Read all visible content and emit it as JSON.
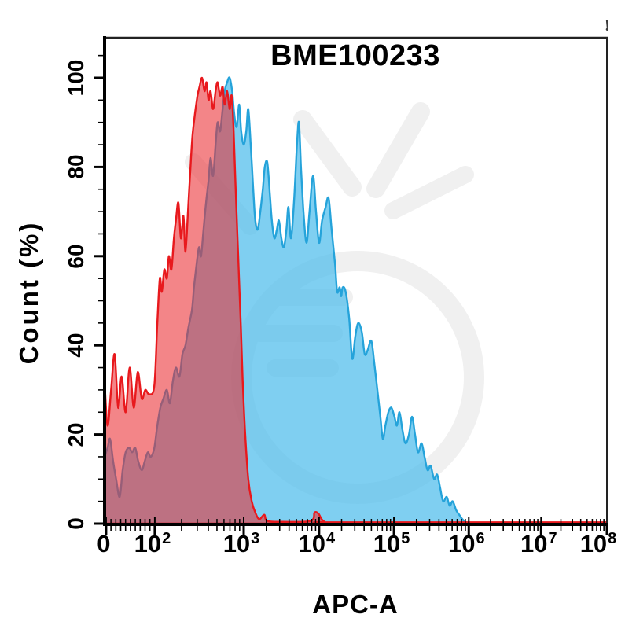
{
  "page": {
    "background": "#ffffff",
    "alert_glyph": "!"
  },
  "chart_data": {
    "type": "area",
    "subtype": "flow-cytometry-histogram-overlay",
    "title": "BME100233",
    "xlabel": "APC-A",
    "ylabel": "Count (%)",
    "grid": false,
    "legend": "none",
    "x_axis": {
      "scale": "biexponential-log",
      "ticks": [
        {
          "base": "0",
          "sup": "",
          "pos": 0.3
        },
        {
          "base": "10",
          "sup": "2",
          "pos": 10.0
        },
        {
          "base": "10",
          "sup": "3",
          "pos": 27.7
        },
        {
          "base": "10",
          "sup": "4",
          "pos": 42.7
        },
        {
          "base": "10",
          "sup": "5",
          "pos": 57.6
        },
        {
          "base": "10",
          "sup": "6",
          "pos": 72.5
        },
        {
          "base": "10",
          "sup": "7",
          "pos": 86.9
        },
        {
          "base": "10",
          "sup": "8",
          "pos": 100
        }
      ]
    },
    "y_axis": {
      "min": 0,
      "max": 100,
      "major_step": 20,
      "minor_step": 5,
      "ticks": [
        0,
        20,
        40,
        60,
        80,
        100
      ]
    },
    "axis_color": "#000000",
    "watermark_color": "#f0f0f0",
    "series": [
      {
        "name": "blue_stained_histogram",
        "stroke": "#25a3da",
        "fill": "rgba(77,189,235,0.72)",
        "points": [
          [
            0,
            15
          ],
          [
            0.6,
            17
          ],
          [
            1.1,
            19
          ],
          [
            1.7,
            14
          ],
          [
            2.3,
            10
          ],
          [
            3.0,
            6
          ],
          [
            3.6,
            12
          ],
          [
            4.2,
            16
          ],
          [
            4.9,
            17
          ],
          [
            5.5,
            16
          ],
          [
            6.1,
            17
          ],
          [
            6.7,
            14
          ],
          [
            7.4,
            12
          ],
          [
            8.0,
            14
          ],
          [
            8.6,
            16
          ],
          [
            9.2,
            15
          ],
          [
            9.9,
            17
          ],
          [
            10.5,
            22
          ],
          [
            11.1,
            26
          ],
          [
            11.7,
            28
          ],
          [
            12.4,
            30
          ],
          [
            13.0,
            27
          ],
          [
            13.6,
            32
          ],
          [
            14.2,
            35
          ],
          [
            14.9,
            33
          ],
          [
            15.5,
            38
          ],
          [
            16.1,
            40
          ],
          [
            16.7,
            44
          ],
          [
            17.4,
            48
          ],
          [
            17.8,
            53
          ],
          [
            18.3,
            58
          ],
          [
            18.8,
            62
          ],
          [
            19.2,
            60
          ],
          [
            19.7,
            66
          ],
          [
            20.2,
            72
          ],
          [
            20.7,
            77
          ],
          [
            21.1,
            82
          ],
          [
            21.6,
            78
          ],
          [
            22.1,
            85
          ],
          [
            22.5,
            90
          ],
          [
            23.0,
            88
          ],
          [
            23.5,
            93
          ],
          [
            23.9,
            97
          ],
          [
            24.4,
            99
          ],
          [
            24.9,
            100
          ],
          [
            25.4,
            97
          ],
          [
            25.8,
            92
          ],
          [
            26.3,
            89
          ],
          [
            26.8,
            94
          ],
          [
            27.2,
            88
          ],
          [
            27.7,
            85
          ],
          [
            28.2,
            88
          ],
          [
            28.6,
            93
          ],
          [
            29.1,
            85
          ],
          [
            29.6,
            75
          ],
          [
            30.0,
            68
          ],
          [
            30.5,
            66
          ],
          [
            31.0,
            70
          ],
          [
            31.5,
            75
          ],
          [
            31.9,
            80
          ],
          [
            32.4,
            81
          ],
          [
            32.9,
            74
          ],
          [
            33.3,
            68
          ],
          [
            33.8,
            64
          ],
          [
            34.3,
            66
          ],
          [
            34.7,
            68
          ],
          [
            35.2,
            64
          ],
          [
            35.7,
            62
          ],
          [
            36.2,
            66
          ],
          [
            36.6,
            71
          ],
          [
            37.1,
            64
          ],
          [
            37.7,
            72
          ],
          [
            38.3,
            85
          ],
          [
            38.7,
            90
          ],
          [
            39.1,
            80
          ],
          [
            39.6,
            70
          ],
          [
            40.2,
            63
          ],
          [
            40.8,
            70
          ],
          [
            41.5,
            78
          ],
          [
            42.1,
            70
          ],
          [
            42.7,
            63
          ],
          [
            43.3,
            68
          ],
          [
            44.0,
            71
          ],
          [
            44.6,
            73
          ],
          [
            45.2,
            66
          ],
          [
            45.9,
            58
          ],
          [
            46.3,
            52
          ],
          [
            46.8,
            53
          ],
          [
            47.1,
            51
          ],
          [
            47.4,
            53
          ],
          [
            48.0,
            52
          ],
          [
            48.7,
            46
          ],
          [
            49.3,
            37
          ],
          [
            49.9,
            42
          ],
          [
            50.5,
            45
          ],
          [
            51.2,
            43
          ],
          [
            51.8,
            38
          ],
          [
            52.4,
            39
          ],
          [
            53.1,
            41
          ],
          [
            53.7,
            36
          ],
          [
            54.3,
            30
          ],
          [
            54.9,
            24
          ],
          [
            55.4,
            19
          ],
          [
            55.9,
            22
          ],
          [
            56.5,
            25
          ],
          [
            57.1,
            26
          ],
          [
            57.7,
            24
          ],
          [
            58.2,
            22
          ],
          [
            58.7,
            25
          ],
          [
            59.3,
            21
          ],
          [
            59.9,
            18
          ],
          [
            60.6,
            20
          ],
          [
            61.2,
            24
          ],
          [
            61.8,
            20
          ],
          [
            62.4,
            16
          ],
          [
            63.1,
            18
          ],
          [
            63.7,
            15
          ],
          [
            64.3,
            12
          ],
          [
            64.9,
            13
          ],
          [
            65.6,
            10
          ],
          [
            66.2,
            11
          ],
          [
            66.8,
            8
          ],
          [
            67.4,
            5
          ],
          [
            68.1,
            6
          ],
          [
            68.7,
            4
          ],
          [
            69.3,
            5
          ],
          [
            70.0,
            3
          ],
          [
            70.6,
            2
          ],
          [
            71.2,
            1
          ],
          [
            71.8,
            0.4
          ],
          [
            72.5,
            0.1
          ]
        ]
      },
      {
        "name": "red_control_histogram",
        "stroke": "#e8191d",
        "fill": "rgba(235,45,50,0.58)",
        "points": [
          [
            0,
            32
          ],
          [
            0.6,
            22
          ],
          [
            1.3,
            30
          ],
          [
            2.0,
            38
          ],
          [
            2.7,
            26
          ],
          [
            3.4,
            33
          ],
          [
            4.2,
            25
          ],
          [
            5.0,
            35
          ],
          [
            5.8,
            26
          ],
          [
            6.6,
            34
          ],
          [
            7.4,
            28
          ],
          [
            8.1,
            30
          ],
          [
            8.9,
            29
          ],
          [
            9.9,
            31
          ],
          [
            10.5,
            45
          ],
          [
            11.0,
            55
          ],
          [
            11.4,
            52
          ],
          [
            11.9,
            57
          ],
          [
            12.4,
            55
          ],
          [
            12.8,
            60
          ],
          [
            13.3,
            57
          ],
          [
            13.8,
            64
          ],
          [
            14.2,
            68
          ],
          [
            14.7,
            72
          ],
          [
            15.2,
            64
          ],
          [
            15.7,
            69
          ],
          [
            16.1,
            61
          ],
          [
            16.6,
            70
          ],
          [
            17.1,
            80
          ],
          [
            17.5,
            87
          ],
          [
            18.0,
            92
          ],
          [
            18.5,
            96
          ],
          [
            18.9,
            98
          ],
          [
            19.4,
            100
          ],
          [
            19.9,
            97
          ],
          [
            20.3,
            99
          ],
          [
            20.7,
            95
          ],
          [
            21.1,
            97
          ],
          [
            21.6,
            93
          ],
          [
            22.1,
            97
          ],
          [
            22.5,
            99
          ],
          [
            23.0,
            96
          ],
          [
            23.5,
            98
          ],
          [
            23.9,
            94
          ],
          [
            24.4,
            97
          ],
          [
            24.9,
            93
          ],
          [
            25.3,
            96
          ],
          [
            25.7,
            88
          ],
          [
            26.1,
            75
          ],
          [
            26.6,
            60
          ],
          [
            27.1,
            45
          ],
          [
            27.5,
            32
          ],
          [
            28.0,
            20
          ],
          [
            28.6,
            10
          ],
          [
            29.3,
            5
          ],
          [
            30.0,
            2.5
          ],
          [
            30.8,
            1
          ],
          [
            31.8,
            2
          ],
          [
            32.4,
            0.6
          ],
          [
            35.5,
            0.4
          ],
          [
            41.0,
            0.6
          ],
          [
            41.8,
            2.5
          ],
          [
            42.6,
            2.2
          ],
          [
            43.7,
            0.5
          ],
          [
            46.5,
            0.3
          ],
          [
            100,
            0.3
          ]
        ]
      }
    ]
  }
}
